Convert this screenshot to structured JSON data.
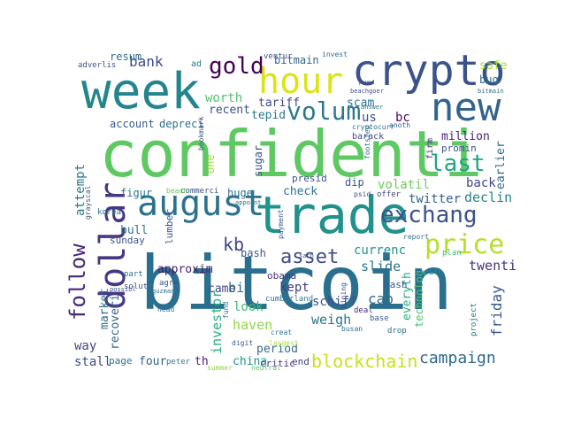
{
  "words": [
    {
      "text": "bitcoin",
      "color": "#2a6f8e"
    },
    {
      "text": "confidenti",
      "color": "#5ec962"
    },
    {
      "text": "trade",
      "color": "#21918c"
    },
    {
      "text": "week",
      "color": "#25858e"
    },
    {
      "text": "crypto",
      "color": "#3b528b"
    },
    {
      "text": "new",
      "color": "#33638d"
    },
    {
      "text": "hour",
      "color": "#dde318"
    },
    {
      "text": "august",
      "color": "#2c728e"
    },
    {
      "text": "dollar",
      "color": "#443983"
    },
    {
      "text": "exchang",
      "color": "#3b528b"
    },
    {
      "text": "price",
      "color": "#b5de2b"
    },
    {
      "text": "follow",
      "color": "#482677"
    },
    {
      "text": "gold",
      "color": "#440154"
    },
    {
      "text": "volum",
      "color": "#2a788e"
    },
    {
      "text": "last",
      "color": "#20a386"
    },
    {
      "text": "asset",
      "color": "#3e4a89"
    },
    {
      "text": "blockchain",
      "color": "#c8e020"
    },
    {
      "text": "campaign",
      "color": "#31688e"
    },
    {
      "text": "bank",
      "color": "#3e4989"
    },
    {
      "text": "kb",
      "color": "#414487"
    },
    {
      "text": "twenti",
      "color": "#46327e"
    },
    {
      "text": "friday",
      "color": "#38598c"
    },
    {
      "text": "million",
      "color": "#482475"
    },
    {
      "text": "earlier",
      "color": "#31688e"
    },
    {
      "text": "declin",
      "color": "#26828e"
    },
    {
      "text": "back",
      "color": "#404688"
    },
    {
      "text": "volatil",
      "color": "#6ccd5a"
    },
    {
      "text": "twitter",
      "color": "#34618d"
    },
    {
      "text": "currenc",
      "color": "#20928c"
    },
    {
      "text": "slide",
      "color": "#2a768e"
    },
    {
      "text": "cap",
      "color": "#31688e"
    },
    {
      "text": "weigh",
      "color": "#2a788e"
    },
    {
      "text": "schiff",
      "color": "#3b528b"
    },
    {
      "text": "haven",
      "color": "#8fd744"
    },
    {
      "text": "look",
      "color": "#3aba76"
    },
    {
      "text": "kept",
      "color": "#453882"
    },
    {
      "text": "obama",
      "color": "#46307e"
    },
    {
      "text": "big",
      "color": "#2d708e"
    },
    {
      "text": "came",
      "color": "#3f4788"
    },
    {
      "text": "approxim",
      "color": "#481c6e"
    },
    {
      "text": "investor",
      "color": "#29af7f"
    },
    {
      "text": "market",
      "color": "#2d708e"
    },
    {
      "text": "recoveri",
      "color": "#31688e"
    },
    {
      "text": "way",
      "color": "#414487"
    },
    {
      "text": "stall",
      "color": "#3e4a89"
    },
    {
      "text": "page",
      "color": "#2c728e"
    },
    {
      "text": "four",
      "color": "#355f8d"
    },
    {
      "text": "peter",
      "color": "#2a778e"
    },
    {
      "text": "th",
      "color": "#481f70"
    },
    {
      "text": "china",
      "color": "#21918c"
    },
    {
      "text": "period",
      "color": "#306a8e"
    },
    {
      "text": "critic",
      "color": "#453781"
    },
    {
      "text": "end",
      "color": "#3f4889"
    },
    {
      "text": "everyth",
      "color": "#27ad81"
    },
    {
      "text": "technolog",
      "color": "#4ac16d"
    },
    {
      "text": "project",
      "color": "#2d708e"
    },
    {
      "text": "drop",
      "color": "#2c718e"
    },
    {
      "text": "hash",
      "color": "#38598c"
    },
    {
      "text": "deal",
      "color": "#472f7d"
    },
    {
      "text": "base",
      "color": "#345e8d"
    },
    {
      "text": "south",
      "color": "#25858e"
    },
    {
      "text": "plan",
      "color": "#3dbc74"
    },
    {
      "text": "gold",
      "color": "#440154"
    },
    {
      "text": "bitmain",
      "color": "#33638d"
    },
    {
      "text": "invest",
      "color": "#2f6b8e"
    },
    {
      "text": "safe",
      "color": "#a8db34"
    },
    {
      "text": "bug",
      "color": "#2e6e8e"
    },
    {
      "text": "run",
      "color": "#404688"
    },
    {
      "text": "tariff",
      "color": "#3f4788"
    },
    {
      "text": "tepid",
      "color": "#2a788e"
    },
    {
      "text": "us",
      "color": "#3b528b"
    },
    {
      "text": "bc",
      "color": "#460a5d"
    },
    {
      "text": "scam",
      "color": "#2c738e"
    },
    {
      "text": "cryptocurr",
      "color": "#2d708e"
    },
    {
      "text": "barack",
      "color": "#3e4a89"
    },
    {
      "text": "firm",
      "color": "#472a7a"
    },
    {
      "text": "promin",
      "color": "#3b528b"
    },
    {
      "text": "anoth",
      "color": "#355f8d"
    },
    {
      "text": "resum",
      "color": "#31688e"
    },
    {
      "text": "adverlis",
      "color": "#3b528b"
    },
    {
      "text": "ad",
      "color": "#2a788e"
    },
    {
      "text": "worth",
      "color": "#52c569"
    },
    {
      "text": "recent",
      "color": "#3b528b"
    },
    {
      "text": "account",
      "color": "#38598c"
    },
    {
      "text": "depreci",
      "color": "#2c728e"
    },
    {
      "text": "attempt",
      "color": "#2a788e"
    },
    {
      "text": "grayscal",
      "color": "#3b528b"
    },
    {
      "text": "korea",
      "color": "#2a788e"
    },
    {
      "text": "one",
      "color": "#9bd93c"
    },
    {
      "text": "huge",
      "color": "#2c728e"
    },
    {
      "text": "sugar",
      "color": "#3b528b"
    },
    {
      "text": "figur",
      "color": "#2a788e"
    },
    {
      "text": "commerci",
      "color": "#3b528b"
    },
    {
      "text": "beach",
      "color": "#6ccd5a"
    },
    {
      "text": "presid",
      "color": "#3b528b"
    },
    {
      "text": "check",
      "color": "#2c728e"
    },
    {
      "text": "dip",
      "color": "#38598c"
    },
    {
      "text": "offer",
      "color": "#414487"
    },
    {
      "text": "psid",
      "color": "#3b528b"
    },
    {
      "text": "report",
      "color": "#2c728e"
    },
    {
      "text": "lumber",
      "color": "#3b528b"
    },
    {
      "text": "bull",
      "color": "#2c728e"
    },
    {
      "text": "sunday",
      "color": "#3b528b"
    },
    {
      "text": "bash",
      "color": "#38598c"
    },
    {
      "text": "cumberland",
      "color": "#2a788e"
    },
    {
      "text": "payment",
      "color": "#38598c"
    },
    {
      "text": "agre",
      "color": "#3b528b"
    },
    {
      "text": "part",
      "color": "#2c728e"
    },
    {
      "text": "solut",
      "color": "#3b528b"
    },
    {
      "text": "busan",
      "color": "#2c728e"
    },
    {
      "text": "largest",
      "color": "#b5de2b"
    },
    {
      "text": "creat",
      "color": "#2c728e"
    },
    {
      "text": "fund",
      "color": "#2a788e"
    },
    {
      "text": "digit",
      "color": "#3b528b"
    },
    {
      "text": "head",
      "color": "#2c728e"
    },
    {
      "text": "neutral",
      "color": "#5ec962"
    },
    {
      "text": "summer",
      "color": "#8fd744"
    },
    {
      "text": "mining",
      "color": "#3b528b"
    },
    {
      "text": "footstep",
      "color": "#2c728e"
    },
    {
      "text": "bookmark",
      "color": "#3b528b"
    },
    {
      "text": "answer",
      "color": "#2c728e"
    },
    {
      "text": "ventur",
      "color": "#3b528b"
    },
    {
      "text": "appoint",
      "color": "#2c728e"
    },
    {
      "text": "sach",
      "color": "#3b528b"
    },
    {
      "text": "guzman",
      "color": "#2c728e"
    },
    {
      "text": "possibl",
      "color": "#3b528b"
    },
    {
      "text": "bitmain",
      "color": "#2c728e"
    },
    {
      "text": "beachgoer",
      "color": "#3b528b"
    }
  ]
}
